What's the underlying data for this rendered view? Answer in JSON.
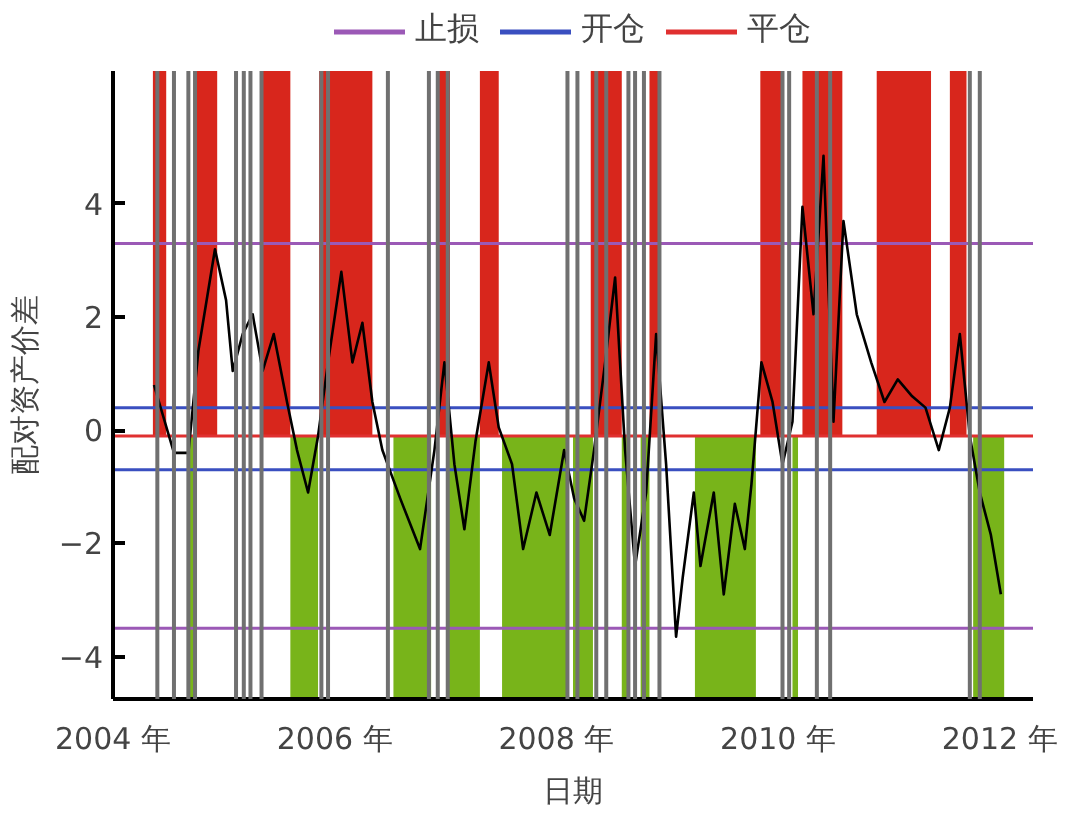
{
  "chart_data": {
    "type": "line",
    "xlabel": "日期",
    "ylabel": "配对资产价差",
    "xlim": [
      2004.0,
      2012.3
    ],
    "ylim": [
      -4.75,
      6.35
    ],
    "xticks": [
      {
        "value": 2004,
        "label": "2004 年"
      },
      {
        "value": 2006,
        "label": "2006 年"
      },
      {
        "value": 2008,
        "label": "2008 年"
      },
      {
        "value": 2010,
        "label": "2010 年"
      },
      {
        "value": 2012,
        "label": "2012 年"
      }
    ],
    "yticks": [
      -4,
      -2,
      0,
      2,
      4
    ],
    "grid": false,
    "legend": "top",
    "series": [
      {
        "color": "#000000",
        "x": [
          2004.37,
          2004.55,
          2004.68,
          2004.77,
          2004.92,
          2005.02,
          2005.08,
          2005.17,
          2005.26,
          2005.35,
          2005.45,
          2005.57,
          2005.66,
          2005.76,
          2005.85,
          2005.94,
          2006.06,
          2006.16,
          2006.25,
          2006.34,
          2006.43,
          2006.59,
          2006.77,
          2006.9,
          2006.99,
          2007.08,
          2007.17,
          2007.27,
          2007.39,
          2007.48,
          2007.6,
          2007.7,
          2007.82,
          2007.94,
          2008.07,
          2008.16,
          2008.25,
          2008.34,
          2008.44,
          2008.53,
          2008.62,
          2008.71,
          2008.81,
          2008.9,
          2008.99,
          2009.08,
          2009.14,
          2009.24,
          2009.3,
          2009.42,
          2009.51,
          2009.61,
          2009.7,
          2009.76,
          2009.85,
          2009.95,
          2010.04,
          2010.13,
          2010.22,
          2010.32,
          2010.41,
          2010.5,
          2010.59,
          2010.71,
          2010.84,
          2010.96,
          2011.08,
          2011.21,
          2011.33,
          2011.45,
          2011.55,
          2011.64,
          2011.73,
          2011.82,
          2011.92,
          2012.01
        ],
        "values": [
          0.8,
          -0.4,
          -0.4,
          1.4,
          3.2,
          2.3,
          1.05,
          1.7,
          2.05,
          1.05,
          1.7,
          0.5,
          -0.35,
          -1.1,
          -0.1,
          1.2,
          2.8,
          1.2,
          1.9,
          0.5,
          -0.35,
          -1.2,
          -2.1,
          -0.35,
          1.2,
          -0.6,
          -1.75,
          -0.2,
          1.2,
          0.05,
          -0.6,
          -2.1,
          -1.1,
          -1.85,
          -0.35,
          -1.2,
          -1.6,
          -0.35,
          1.2,
          2.7,
          -0.35,
          -2.4,
          -1.1,
          1.7,
          -0.6,
          -3.65,
          -2.6,
          -1.1,
          -2.4,
          -1.1,
          -2.9,
          -1.3,
          -2.1,
          -0.95,
          1.2,
          0.5,
          -0.6,
          0.15,
          3.95,
          2.05,
          4.85,
          0.15,
          3.7,
          2.05,
          1.2,
          0.5,
          0.9,
          0.6,
          0.4,
          -0.35,
          0.4,
          1.7,
          -0.1,
          -1.1,
          -1.85,
          -2.9
        ]
      }
    ],
    "ref_lines": [
      {
        "axis": "y",
        "value": 3.3,
        "label": "止损",
        "color": "#9b59b6"
      },
      {
        "axis": "y",
        "value": -3.5,
        "color": "#9b59b6"
      },
      {
        "axis": "y",
        "value": 0.4,
        "label": "开仓",
        "color": "#3a4fc0"
      },
      {
        "axis": "y",
        "value": -0.7,
        "color": "#3a4fc0"
      },
      {
        "axis": "y",
        "value": -0.1,
        "label": "平仓",
        "color": "#e03030"
      },
      {
        "axis": "x",
        "value": 2004.4,
        "color": "#707070"
      },
      {
        "axis": "x",
        "value": 2004.55,
        "color": "#707070"
      },
      {
        "axis": "x",
        "value": 2004.68,
        "color": "#707070"
      },
      {
        "axis": "x",
        "value": 2004.74,
        "color": "#707070"
      },
      {
        "axis": "x",
        "value": 2005.11,
        "color": "#707070"
      },
      {
        "axis": "x",
        "value": 2005.18,
        "color": "#707070"
      },
      {
        "axis": "x",
        "value": 2005.24,
        "color": "#707070"
      },
      {
        "axis": "x",
        "value": 2005.34,
        "color": "#707070"
      },
      {
        "axis": "x",
        "value": 2005.88,
        "color": "#707070"
      },
      {
        "axis": "x",
        "value": 2005.94,
        "color": "#707070"
      },
      {
        "axis": "x",
        "value": 2006.48,
        "color": "#707070"
      },
      {
        "axis": "x",
        "value": 2006.85,
        "color": "#707070"
      },
      {
        "axis": "x",
        "value": 2006.93,
        "color": "#707070"
      },
      {
        "axis": "x",
        "value": 2007.02,
        "color": "#707070"
      },
      {
        "axis": "x",
        "value": 2008.1,
        "color": "#707070"
      },
      {
        "axis": "x",
        "value": 2008.19,
        "color": "#707070"
      },
      {
        "axis": "x",
        "value": 2008.36,
        "color": "#707070"
      },
      {
        "axis": "x",
        "value": 2008.45,
        "color": "#707070"
      },
      {
        "axis": "x",
        "value": 2008.65,
        "color": "#707070"
      },
      {
        "axis": "x",
        "value": 2008.71,
        "color": "#707070"
      },
      {
        "axis": "x",
        "value": 2008.79,
        "color": "#707070"
      },
      {
        "axis": "x",
        "value": 2008.93,
        "color": "#707070"
      },
      {
        "axis": "x",
        "value": 2010.04,
        "color": "#707070"
      },
      {
        "axis": "x",
        "value": 2010.1,
        "color": "#707070"
      },
      {
        "axis": "x",
        "value": 2010.35,
        "color": "#707070"
      },
      {
        "axis": "x",
        "value": 2010.47,
        "color": "#707070"
      },
      {
        "axis": "x",
        "value": 2011.73,
        "color": "#707070"
      },
      {
        "axis": "x",
        "value": 2011.82,
        "color": "#707070"
      }
    ],
    "bands": [
      {
        "axis": "x",
        "from": 2004.36,
        "to": 2004.48,
        "color": "#d8261c"
      },
      {
        "axis": "x",
        "from": 2004.73,
        "to": 2004.94,
        "color": "#d8261c"
      },
      {
        "axis": "x",
        "from": 2005.34,
        "to": 2005.6,
        "color": "#d8261c"
      },
      {
        "axis": "x",
        "from": 2005.86,
        "to": 2006.34,
        "color": "#d8261c"
      },
      {
        "axis": "x",
        "from": 2006.94,
        "to": 2007.04,
        "color": "#d8261c"
      },
      {
        "axis": "x",
        "from": 2007.31,
        "to": 2007.48,
        "color": "#d8261c"
      },
      {
        "axis": "x",
        "from": 2008.31,
        "to": 2008.59,
        "color": "#d8261c"
      },
      {
        "axis": "x",
        "from": 2008.84,
        "to": 2008.94,
        "color": "#d8261c"
      },
      {
        "axis": "x",
        "from": 2009.84,
        "to": 2010.03,
        "color": "#d8261c"
      },
      {
        "axis": "x",
        "from": 2010.22,
        "to": 2010.58,
        "color": "#d8261c"
      },
      {
        "axis": "x",
        "from": 2010.89,
        "to": 2011.38,
        "color": "#d8261c"
      },
      {
        "axis": "x",
        "from": 2011.55,
        "to": 2011.7,
        "color": "#d8261c"
      },
      {
        "axis": "x",
        "from": 2004.67,
        "to": 2004.73,
        "color": "#78b41a"
      },
      {
        "axis": "x",
        "from": 2005.6,
        "to": 2005.85,
        "color": "#78b41a"
      },
      {
        "axis": "x",
        "from": 2006.53,
        "to": 2006.87,
        "color": "#78b41a"
      },
      {
        "axis": "x",
        "from": 2007.01,
        "to": 2007.31,
        "color": "#78b41a"
      },
      {
        "axis": "x",
        "from": 2007.51,
        "to": 2008.1,
        "color": "#78b41a"
      },
      {
        "axis": "x",
        "from": 2008.15,
        "to": 2008.33,
        "color": "#78b41a"
      },
      {
        "axis": "x",
        "from": 2008.59,
        "to": 2008.65,
        "color": "#78b41a"
      },
      {
        "axis": "x",
        "from": 2008.76,
        "to": 2008.84,
        "color": "#78b41a"
      },
      {
        "axis": "x",
        "from": 2009.25,
        "to": 2009.8,
        "color": "#78b41a"
      },
      {
        "axis": "x",
        "from": 2010.13,
        "to": 2010.18,
        "color": "#78b41a"
      },
      {
        "axis": "x",
        "from": 2011.76,
        "to": 2012.04,
        "color": "#78b41a"
      }
    ]
  }
}
